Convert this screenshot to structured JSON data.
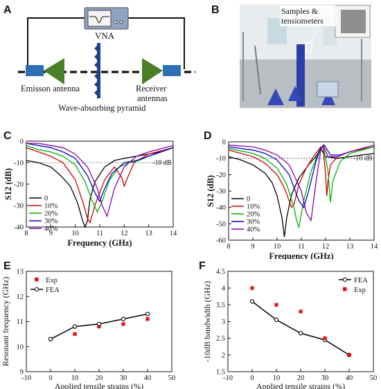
{
  "panels": {
    "A": {
      "letter": "A",
      "labels": {
        "vna": "VNA",
        "emission": "Emisson antenna",
        "receiver_line1": "Receiver",
        "receiver_line2": "antennas",
        "pyramid": "Wave-absorbing pyramid"
      }
    },
    "B": {
      "letter": "B",
      "labels": {
        "samples_line1": "Samples &",
        "samples_line2": "tensiometers"
      }
    },
    "C": {
      "letter": "C"
    },
    "D": {
      "letter": "D"
    },
    "E": {
      "letter": "E"
    },
    "F": {
      "letter": "F"
    }
  },
  "chart_data": [
    {
      "id": "C",
      "type": "line",
      "xlabel": "Frequency (GHz)",
      "ylabel": "S12 (dB)",
      "xlim": [
        8,
        14
      ],
      "ylim": [
        -40,
        0
      ],
      "xticks": [
        8,
        9,
        10,
        11,
        12,
        13,
        14
      ],
      "yticks": [
        0,
        -10,
        -20,
        -30,
        -40
      ],
      "reference": {
        "y": -10,
        "label": "-10 dB"
      },
      "legend_position": "left",
      "series": [
        {
          "name": "0",
          "color": "#000000",
          "x": [
            8,
            8.5,
            9,
            9.4,
            9.8,
            10.1,
            10.3,
            10.4,
            10.5,
            10.6,
            10.8,
            11.2,
            11.6,
            12,
            12.5,
            13,
            13.5,
            14
          ],
          "y": [
            -9,
            -10,
            -12,
            -16,
            -21,
            -29,
            -37,
            -40,
            -37,
            -27,
            -19,
            -12,
            -9,
            -8,
            -7,
            -6,
            -5,
            -3
          ]
        },
        {
          "name": "10%",
          "color": "#cc0000",
          "x": [
            8,
            8.5,
            9,
            9.5,
            10,
            10.3,
            10.5,
            10.6,
            10.8,
            11.2,
            11.6,
            11.9,
            12,
            12.1,
            12.4,
            13,
            14
          ],
          "y": [
            -3,
            -5,
            -7,
            -10,
            -18,
            -28,
            -36,
            -38,
            -30,
            -18,
            -12,
            -17,
            -21,
            -18,
            -10,
            -6,
            -3
          ]
        },
        {
          "name": "20%",
          "color": "#00b000",
          "x": [
            8,
            8.5,
            9,
            9.5,
            10,
            10.4,
            10.7,
            10.9,
            11.1,
            11.4,
            11.8,
            12.2,
            12.6,
            13,
            14
          ],
          "y": [
            -2,
            -4,
            -5,
            -7,
            -11,
            -19,
            -28,
            -33,
            -28,
            -18,
            -12,
            -10,
            -9,
            -7,
            -3
          ]
        },
        {
          "name": "30%",
          "color": "#0000cc",
          "x": [
            8,
            8.5,
            9,
            9.5,
            10,
            10.5,
            10.8,
            11,
            11.2,
            11.5,
            12,
            12.5,
            13,
            14
          ],
          "y": [
            -1,
            -2,
            -3,
            -5,
            -8,
            -16,
            -24,
            -28,
            -22,
            -15,
            -10,
            -9,
            -7,
            -3
          ]
        },
        {
          "name": "40%",
          "color": "#8800aa",
          "x": [
            8,
            8.5,
            9,
            9.5,
            10,
            10.5,
            10.9,
            11.1,
            11.3,
            11.6,
            12,
            12.5,
            13,
            14
          ],
          "y": [
            -1,
            -1,
            -2,
            -3,
            -6,
            -12,
            -22,
            -30,
            -35,
            -22,
            -12,
            -7,
            -5,
            -2
          ]
        }
      ]
    },
    {
      "id": "D",
      "type": "line",
      "xlabel": "Frequency (GHz)",
      "ylabel": "S12 (dB)",
      "xlim": [
        8,
        14
      ],
      "ylim": [
        -60,
        0
      ],
      "xticks": [
        8,
        9,
        10,
        11,
        12,
        13,
        14
      ],
      "yticks": [
        0,
        -10,
        -20,
        -30,
        -40,
        -50,
        -60
      ],
      "reference": {
        "y": -10,
        "label": "-10 dB"
      },
      "legend_position": "left",
      "series": [
        {
          "name": "0",
          "color": "#000000",
          "x": [
            8,
            8.5,
            9,
            9.5,
            9.8,
            10,
            10.2,
            10.3,
            10.4,
            10.6,
            10.9,
            11.3,
            11.6,
            11.8,
            12,
            12.5,
            13,
            13.5,
            14
          ],
          "y": [
            -9,
            -11,
            -14,
            -19,
            -25,
            -33,
            -46,
            -58,
            -46,
            -32,
            -22,
            -14,
            -9,
            -4,
            -9,
            -10,
            -9,
            -8,
            -7
          ]
        },
        {
          "name": "10%",
          "color": "#cc0000",
          "x": [
            8,
            9,
            9.5,
            10,
            10.3,
            10.5,
            10.6,
            10.7,
            10.9,
            11.2,
            11.5,
            11.8,
            11.9,
            12,
            12.05,
            12.1,
            12.2,
            12.5,
            13,
            14
          ],
          "y": [
            -5,
            -9,
            -13,
            -20,
            -28,
            -36,
            -40,
            -38,
            -26,
            -16,
            -9,
            -3,
            -3,
            -20,
            -33,
            -24,
            -14,
            -9,
            -6,
            -3
          ]
        },
        {
          "name": "20%",
          "color": "#00b000",
          "x": [
            8,
            9,
            9.5,
            10,
            10.4,
            10.7,
            10.8,
            10.9,
            11.1,
            11.4,
            11.7,
            11.9,
            12.1,
            12.2,
            12.3,
            12.6,
            13,
            14
          ],
          "y": [
            -4,
            -7,
            -10,
            -16,
            -26,
            -40,
            -48,
            -52,
            -36,
            -18,
            -7,
            -2,
            -18,
            -37,
            -24,
            -12,
            -7,
            -3
          ]
        },
        {
          "name": "30%",
          "color": "#0000cc",
          "x": [
            8,
            9,
            9.5,
            10,
            10.5,
            10.9,
            11.1,
            11.3,
            11.6,
            11.8,
            11.95,
            12.2,
            12.6,
            13,
            14
          ],
          "y": [
            -3,
            -5,
            -7,
            -11,
            -20,
            -36,
            -40,
            -30,
            -12,
            -4,
            -2,
            -8,
            -8,
            -6,
            -2
          ]
        },
        {
          "name": "40%",
          "color": "#8800aa",
          "x": [
            8,
            9,
            9.5,
            10,
            10.5,
            11,
            11.2,
            11.4,
            11.6,
            11.8,
            11.9,
            12.1,
            12.5,
            13,
            14
          ],
          "y": [
            -2,
            -3,
            -5,
            -8,
            -14,
            -30,
            -43,
            -48,
            -25,
            -5,
            -2,
            -9,
            -9,
            -6,
            -2
          ]
        }
      ]
    },
    {
      "id": "E",
      "type": "scatter",
      "xlabel": "Applied tensile strains (%)",
      "ylabel": "Resonant frequency (GHz)",
      "xlim": [
        -10,
        50
      ],
      "ylim": [
        9,
        13
      ],
      "xticks": [
        -10,
        0,
        10,
        20,
        30,
        40,
        50
      ],
      "yticks": [
        9,
        10,
        11,
        12,
        13
      ],
      "legend_position": "top-left",
      "series": [
        {
          "name": "Exp",
          "color": "#e81010",
          "marker": "square",
          "x": [
            0,
            10,
            20,
            30,
            40
          ],
          "y": [
            10.3,
            10.5,
            10.8,
            10.9,
            11.1
          ]
        },
        {
          "name": "FEA",
          "color": "#000000",
          "marker": "circle-line",
          "x": [
            0,
            10,
            20,
            30,
            40
          ],
          "y": [
            10.3,
            10.8,
            10.9,
            11.1,
            11.3
          ]
        }
      ]
    },
    {
      "id": "F",
      "type": "scatter",
      "xlabel": "Applied tensile strains (%)",
      "ylabel": "-10dB bandwidth (GHz)",
      "xlim": [
        -10,
        50
      ],
      "ylim": [
        1.5,
        4.5
      ],
      "xticks": [
        -10,
        0,
        10,
        20,
        30,
        40,
        50
      ],
      "yticks": [
        1.5,
        2.0,
        2.5,
        3.0,
        3.5,
        4.0,
        4.5
      ],
      "legend_position": "top-right",
      "series": [
        {
          "name": "FEA",
          "color": "#000000",
          "marker": "circle-line",
          "x": [
            0,
            10,
            20,
            30,
            40
          ],
          "y": [
            3.6,
            3.05,
            2.65,
            2.45,
            2.0
          ]
        },
        {
          "name": "Exp",
          "color": "#e81010",
          "marker": "square",
          "x": [
            0,
            10,
            20,
            30,
            40
          ],
          "y": [
            4.0,
            3.5,
            3.3,
            2.5,
            2.0
          ]
        }
      ]
    }
  ]
}
